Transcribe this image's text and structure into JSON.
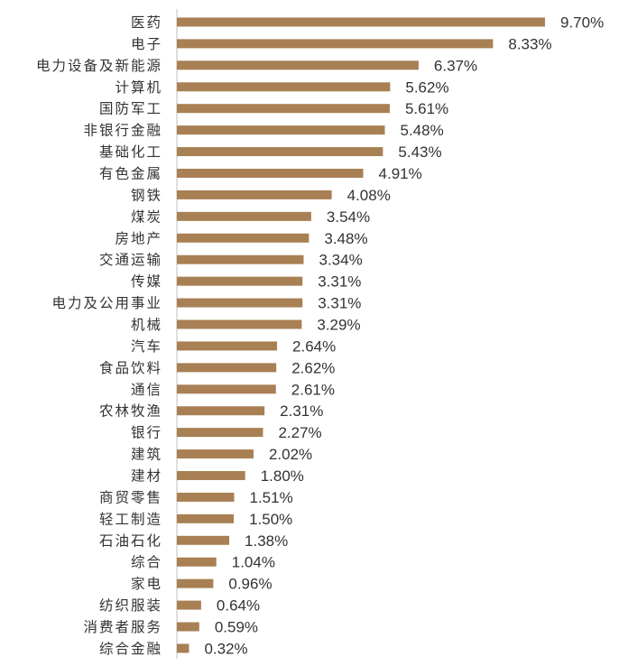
{
  "chart_data": {
    "type": "bar",
    "orientation": "horizontal",
    "title": "",
    "xlabel": "",
    "ylabel": "",
    "grid": false,
    "legend": "none",
    "xlim": [
      0,
      9.7
    ],
    "value_suffix": "%",
    "bar_color": "#A88054",
    "axis_color": "#BFBFBF",
    "categories": [
      "医药",
      "电子",
      "电力设备及新能源",
      "计算机",
      "国防军工",
      "非银行金融",
      "基础化工",
      "有色金属",
      "钢铁",
      "煤炭",
      "房地产",
      "交通运输",
      "传媒",
      "电力及公用事业",
      "机械",
      "汽车",
      "食品饮料",
      "通信",
      "农林牧渔",
      "银行",
      "建筑",
      "建材",
      "商贸零售",
      "轻工制造",
      "石油石化",
      "综合",
      "家电",
      "纺织服装",
      "消费者服务",
      "综合金融"
    ],
    "values": [
      9.7,
      8.33,
      6.37,
      5.62,
      5.61,
      5.48,
      5.43,
      4.91,
      4.08,
      3.54,
      3.48,
      3.34,
      3.31,
      3.31,
      3.29,
      2.64,
      2.62,
      2.61,
      2.31,
      2.27,
      2.02,
      1.8,
      1.51,
      1.5,
      1.38,
      1.04,
      0.96,
      0.64,
      0.59,
      0.32
    ],
    "value_labels": [
      "9.70%",
      "8.33%",
      "6.37%",
      "5.62%",
      "5.61%",
      "5.48%",
      "5.43%",
      "4.91%",
      "4.08%",
      "3.54%",
      "3.48%",
      "3.34%",
      "3.31%",
      "3.31%",
      "3.29%",
      "2.64%",
      "2.62%",
      "2.61%",
      "2.31%",
      "2.27%",
      "2.02%",
      "1.80%",
      "1.51%",
      "1.50%",
      "1.38%",
      "1.04%",
      "0.96%",
      "0.64%",
      "0.59%",
      "0.32%"
    ]
  }
}
